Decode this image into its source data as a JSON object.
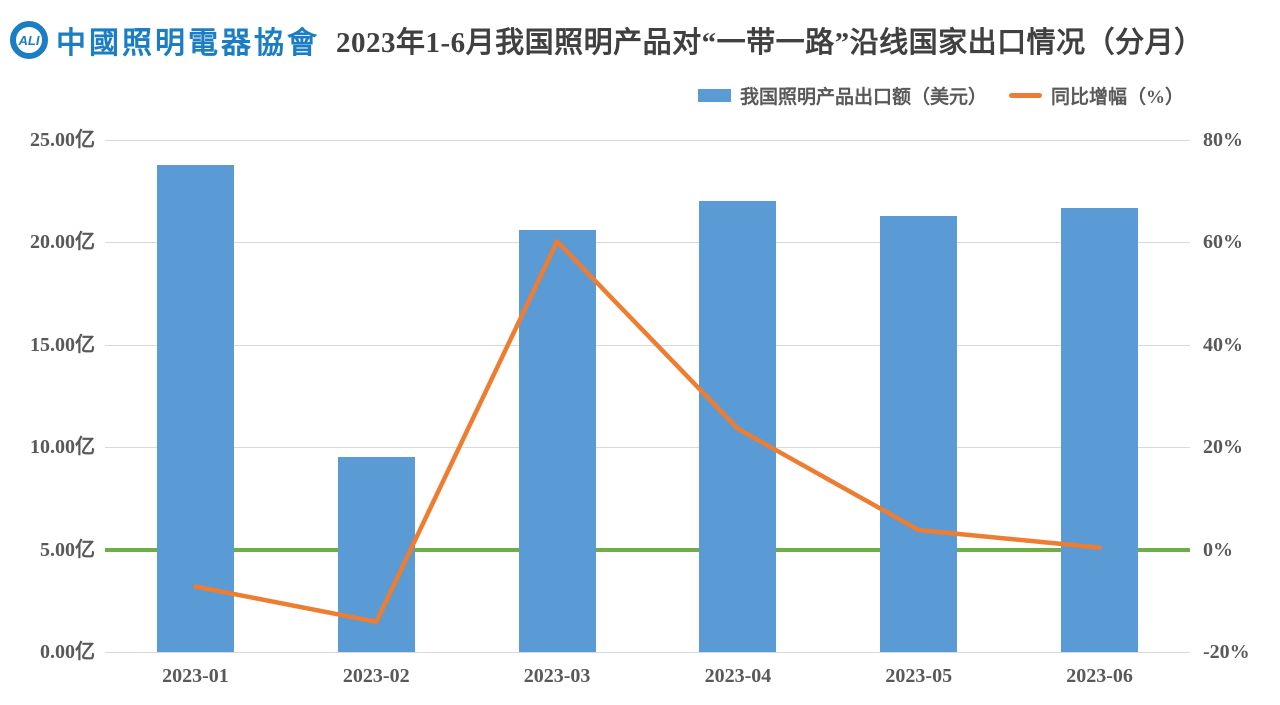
{
  "header": {
    "logo": {
      "mark_text": "ALI",
      "org_name": "中國照明電器協會",
      "brand_color": "#1B7EC2"
    },
    "title": "2023年1-6月我国照明产品对“一带一路”沿线国家出口情况（分月）"
  },
  "chart_data": {
    "type": "bar",
    "subtype": "combo-bar-line-dual-axis",
    "title": "2023年1-6月我国照明产品对“一带一路”沿线国家出口情况（分月）",
    "categories": [
      "2023-01",
      "2023-02",
      "2023-03",
      "2023-04",
      "2023-05",
      "2023-06"
    ],
    "series": [
      {
        "name": "我国照明产品出口额（美元）",
        "type": "bar",
        "axis": "left",
        "color": "#5B9BD5",
        "unit": "亿",
        "values": [
          23.8,
          9.5,
          20.6,
          22.0,
          21.3,
          21.7
        ]
      },
      {
        "name": "同比增幅（%）",
        "type": "line",
        "axis": "right",
        "color": "#ED7D31",
        "unit": "%",
        "values": [
          -7.2,
          -14.1,
          60.2,
          23.6,
          3.8,
          0.4
        ]
      }
    ],
    "left_axis": {
      "label": "",
      "range": [
        0,
        25
      ],
      "tick_step": 5,
      "tick_labels": [
        "0.00亿",
        "5.00亿",
        "10.00亿",
        "15.00亿",
        "20.00亿",
        "25.00亿"
      ]
    },
    "right_axis": {
      "label": "",
      "range": [
        -20,
        80
      ],
      "tick_step": 20,
      "tick_labels": [
        "-20%",
        "0%",
        "20%",
        "40%",
        "60%",
        "80%"
      ]
    },
    "zero_line": {
      "right_value": 0,
      "left_value": 5,
      "color": "#70AD47"
    },
    "grid": {
      "show": true,
      "color": "#D9D9D9"
    },
    "legend_position": "top-right",
    "xlabel": "",
    "ylabel": ""
  }
}
